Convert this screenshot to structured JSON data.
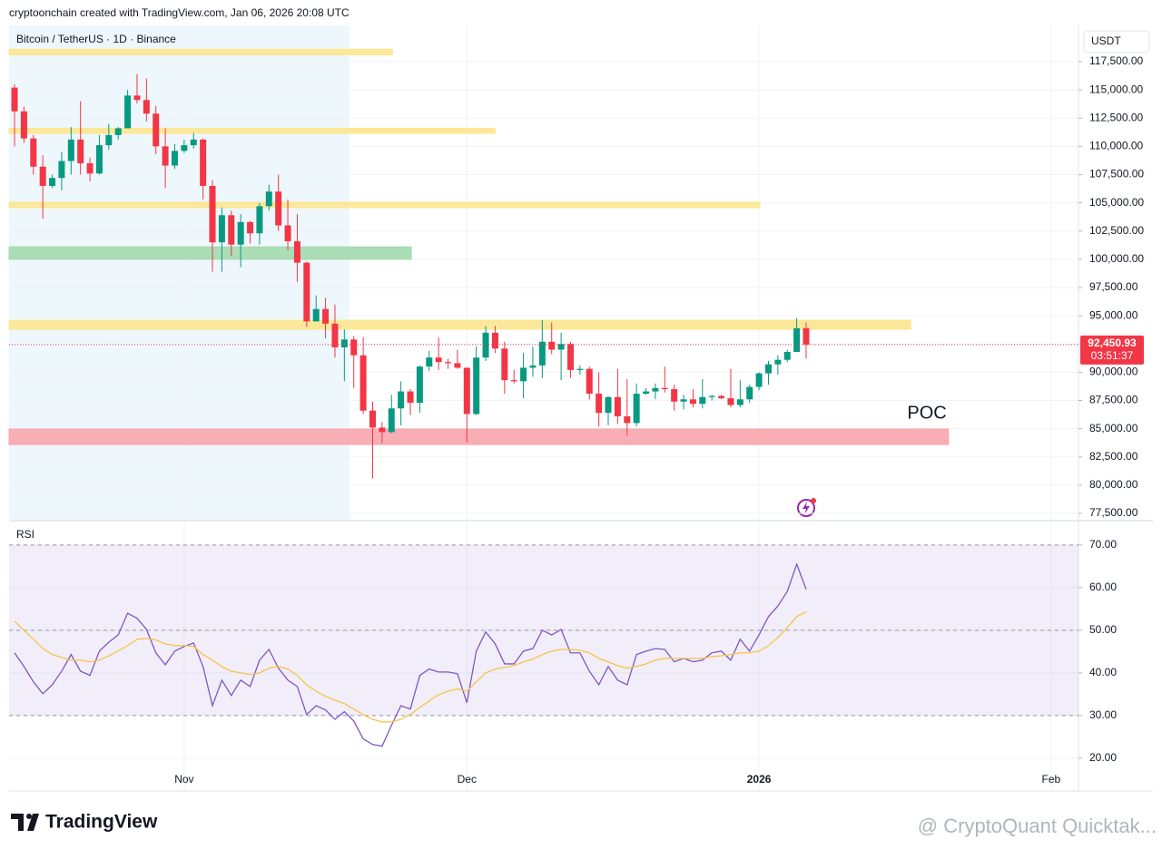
{
  "header": {
    "credit": "cryptoonchain created with TradingView.com, Jan 06, 2026 20:08 UTC"
  },
  "chart_data": [
    {
      "type": "candlestick",
      "title": "Bitcoin / TetherUS · 1D · Binance",
      "currency": "USDT",
      "up_color": "#089981",
      "down_color": "#f23645",
      "grid": true,
      "xlim": [
        -0.58,
        112.9
      ],
      "xticks": [
        {
          "value": 18,
          "label": "Nov"
        },
        {
          "value": 48,
          "label": "Dec"
        },
        {
          "value": 79,
          "label": "2026"
        },
        {
          "value": 110,
          "label": "Feb"
        }
      ],
      "ylim": [
        76940,
        120710
      ],
      "yticks": [
        {
          "value": 77500,
          "label": "77,500.00"
        },
        {
          "value": 80000,
          "label": "80,000.00"
        },
        {
          "value": 82500,
          "label": "82,500.00"
        },
        {
          "value": 85000,
          "label": "85,000.00"
        },
        {
          "value": 87500,
          "label": "87,500.00"
        },
        {
          "value": 90000,
          "label": "90,000.00"
        },
        {
          "value": 92500,
          "label": "92,500.00"
        },
        {
          "value": 95000,
          "label": "95,000.00"
        },
        {
          "value": 97500,
          "label": "97,500.00"
        },
        {
          "value": 100000,
          "label": "100,000.00"
        },
        {
          "value": 102500,
          "label": "102,500.00"
        },
        {
          "value": 105000,
          "label": "105,000.00"
        },
        {
          "value": 107500,
          "label": "107,500.00"
        },
        {
          "value": 110000,
          "label": "110,000.00"
        },
        {
          "value": 112500,
          "label": "112,500.00"
        },
        {
          "value": 115000,
          "label": "115,000.00"
        },
        {
          "value": 117500,
          "label": "117,500.00"
        }
      ],
      "open": [
        115200,
        113100,
        110700,
        108200,
        106500,
        107200,
        108700,
        110600,
        108500,
        107600,
        110100,
        111000,
        111600,
        114500,
        114100,
        112900,
        110000,
        108300,
        109600,
        110100,
        110600,
        106500,
        101500,
        103900,
        101300,
        103300,
        102300,
        104700,
        106000,
        103000,
        101600,
        99700,
        94500,
        95600,
        94300,
        92200,
        92900,
        91500,
        86600,
        85100,
        84700,
        86800,
        88300,
        87300,
        90500,
        91300,
        90900,
        90800,
        90400,
        86300,
        91300,
        93500,
        92100,
        89300,
        89200,
        90400,
        90600,
        92700,
        92000,
        92500,
        90200,
        90300,
        88100,
        86400,
        87800,
        86100,
        85500,
        88100,
        88300,
        88600,
        88500,
        87400,
        87600,
        87200,
        87800,
        87900,
        87700,
        87100,
        87600,
        88700,
        89900,
        90700,
        91100,
        91800,
        93900
      ],
      "high": [
        115500,
        113500,
        111000,
        109200,
        107500,
        109500,
        111700,
        114000,
        109000,
        111000,
        112000,
        111700,
        115000,
        116400,
        116000,
        113600,
        111600,
        110200,
        110600,
        111200,
        110700,
        107000,
        104600,
        104300,
        104000,
        103400,
        105000,
        106600,
        107500,
        105300,
        104000,
        99800,
        96800,
        96600,
        96000,
        93800,
        93200,
        93100,
        87400,
        85600,
        88000,
        89200,
        88500,
        90600,
        91900,
        93100,
        91200,
        92000,
        90400,
        92300,
        94100,
        94100,
        92700,
        90200,
        91700,
        92300,
        94600,
        94400,
        93500,
        92700,
        90600,
        90500,
        90000,
        87900,
        90300,
        89400,
        89000,
        88600,
        89000,
        90500,
        88900,
        88000,
        88500,
        89400,
        88000,
        88000,
        90300,
        89300,
        88900,
        90000,
        91000,
        91500,
        92000,
        94800,
        94400
      ],
      "low": [
        110000,
        110300,
        107500,
        103600,
        106300,
        106100,
        107500,
        107500,
        106900,
        107500,
        109700,
        110600,
        111600,
        113800,
        112200,
        109300,
        106300,
        108000,
        109400,
        109800,
        105300,
        98900,
        98900,
        100300,
        99300,
        101400,
        101300,
        104300,
        102500,
        100800,
        98000,
        94000,
        94500,
        93000,
        91300,
        89200,
        88600,
        86300,
        80600,
        83700,
        84600,
        85300,
        86200,
        86400,
        90100,
        90200,
        90300,
        90300,
        83800,
        86200,
        91000,
        91700,
        88100,
        89000,
        87700,
        89600,
        89500,
        91600,
        89300,
        89500,
        89800,
        87600,
        85200,
        85300,
        85400,
        84400,
        85200,
        88000,
        87600,
        88200,
        86600,
        86700,
        86900,
        86800,
        87500,
        87600,
        86900,
        86900,
        87300,
        88400,
        88900,
        89800,
        90900,
        91800,
        91200
      ],
      "close": [
        113100,
        110700,
        108200,
        106500,
        107200,
        108700,
        110600,
        108500,
        107600,
        110100,
        111000,
        111600,
        114500,
        114100,
        112900,
        110000,
        108300,
        109600,
        110100,
        110600,
        106500,
        101500,
        103900,
        101300,
        103300,
        102300,
        104700,
        106000,
        103000,
        101600,
        99700,
        94500,
        95600,
        94300,
        92200,
        92900,
        91500,
        86600,
        85100,
        84700,
        86800,
        88300,
        87300,
        90500,
        91300,
        90900,
        90800,
        90400,
        86300,
        91300,
        93500,
        92100,
        89300,
        89200,
        90400,
        90600,
        92700,
        92000,
        92500,
        90200,
        90300,
        88100,
        86400,
        87800,
        86100,
        85500,
        88100,
        88300,
        88600,
        88500,
        87400,
        87600,
        87200,
        87800,
        87900,
        87700,
        87100,
        87600,
        88700,
        89900,
        90700,
        91100,
        91800,
        93900,
        92450.93
      ],
      "zones": [
        {
          "low": 118100,
          "high": 118600,
          "x_end": 40.1,
          "color": "#fde68f"
        },
        {
          "low": 111150,
          "high": 111600,
          "x_end": 51,
          "color": "#fde68f"
        },
        {
          "low": 104570,
          "high": 105050,
          "x_end": 79.1,
          "color": "#fde68f"
        },
        {
          "low": 100000,
          "high": 101100,
          "x_end": 42.1,
          "color": "#a3d9ae"
        },
        {
          "low": 93800,
          "high": 94600,
          "x_end": 95.1,
          "color": "#fde68f"
        },
        {
          "low": 83600,
          "high": 84970,
          "x_end": 99.1,
          "color": "#f8a5ad",
          "label": "POC"
        }
      ],
      "price_line": {
        "values": [
          92450.93
        ],
        "value_labels": [
          "92,450.93"
        ],
        "countdown": "03:51:37",
        "color": "#f23645"
      }
    },
    {
      "type": "line",
      "title": "RSI",
      "grid": true,
      "ylim": [
        12.3,
        75.5
      ],
      "yticks": [
        {
          "value": 20,
          "label": "20.00"
        },
        {
          "value": 30,
          "label": "30.00"
        },
        {
          "value": 40,
          "label": "40.00"
        },
        {
          "value": 50,
          "label": "50.00"
        },
        {
          "value": 60,
          "label": "60.00"
        },
        {
          "value": 70,
          "label": "70.00"
        }
      ],
      "levels": [
        30,
        50,
        70
      ],
      "band_color": "#7e57c2",
      "series": [
        {
          "color": "#7e57c2",
          "values": [
            44.7,
            41.5,
            37.9,
            35.1,
            37.2,
            40.4,
            44.3,
            40.4,
            39.4,
            45.1,
            47.2,
            48.9,
            54.0,
            52.8,
            50.2,
            44.7,
            41.9,
            45.1,
            46.2,
            47.0,
            41.5,
            32.3,
            38.3,
            34.7,
            38.3,
            36.8,
            43.0,
            45.5,
            41.1,
            38.3,
            36.8,
            30.2,
            32.3,
            31.3,
            29.1,
            30.9,
            28.7,
            24.5,
            23.2,
            22.8,
            27.7,
            32.3,
            31.5,
            39.4,
            40.9,
            40.2,
            40.2,
            39.8,
            33.0,
            45.1,
            49.6,
            46.8,
            42.1,
            42.1,
            45.1,
            45.7,
            50.0,
            48.9,
            50.2,
            44.7,
            44.7,
            40.4,
            37.2,
            41.5,
            38.3,
            37.2,
            44.3,
            45.1,
            45.7,
            45.5,
            42.6,
            43.4,
            42.6,
            43.0,
            44.7,
            45.1,
            43.0,
            47.9,
            45.1,
            48.9,
            53.2,
            55.7,
            59.1,
            65.5,
            59.6
          ]
        },
        {
          "color": "#f7c34a",
          "values": [
            52.1,
            50.0,
            47.9,
            45.7,
            44.3,
            43.6,
            43.0,
            43.0,
            42.6,
            43.0,
            44.0,
            45.1,
            46.4,
            47.9,
            48.1,
            47.7,
            46.8,
            46.4,
            46.4,
            46.2,
            44.3,
            43.0,
            41.5,
            40.4,
            40.0,
            39.6,
            40.0,
            41.1,
            41.5,
            40.9,
            39.4,
            37.2,
            35.7,
            34.5,
            33.6,
            32.8,
            31.5,
            30.2,
            29.1,
            28.5,
            28.5,
            29.1,
            30.2,
            31.9,
            33.4,
            34.9,
            35.7,
            36.2,
            35.7,
            37.9,
            40.0,
            40.9,
            41.3,
            41.7,
            42.6,
            43.2,
            44.3,
            45.1,
            45.5,
            45.5,
            45.3,
            44.7,
            43.4,
            42.6,
            41.7,
            41.1,
            41.5,
            42.1,
            43.0,
            43.4,
            43.4,
            43.4,
            43.4,
            43.4,
            43.8,
            44.0,
            44.3,
            44.7,
            44.7,
            45.1,
            46.4,
            48.3,
            50.6,
            53.2,
            54.3
          ]
        }
      ]
    }
  ],
  "footer": {
    "brand": "TradingView",
    "watermark": "@ CryptoQuant Quicktak..."
  }
}
